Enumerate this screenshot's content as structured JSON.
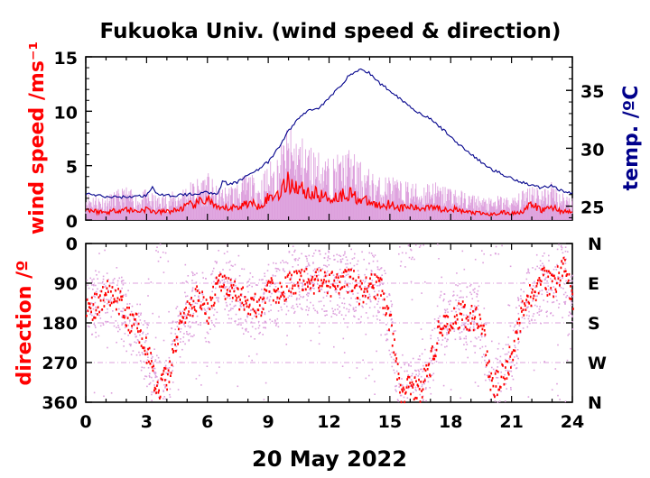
{
  "chart_data": [
    {
      "type": "line",
      "title": "Fukuoka Univ. (wind speed & direction)",
      "ylabel": "wind speed /ms⁻¹",
      "y2label": "temp. /ºC",
      "xlim": [
        0,
        24
      ],
      "ylim": [
        0,
        15
      ],
      "y2lim": [
        23.8,
        37.9
      ],
      "yticks": [
        "0",
        "5",
        "10",
        "15"
      ],
      "y2ticks": [
        "25",
        "30",
        "35"
      ],
      "y2tick_values": [
        25,
        30,
        35
      ],
      "grid": false,
      "colors": {
        "wind_mean": "#ff0000",
        "wind_gust": "#dda0dd",
        "temperature": "#00008b"
      },
      "series": [
        {
          "role": "wind_mean",
          "x": [
            0,
            0.5,
            1,
            1.5,
            2,
            2.5,
            3,
            3.5,
            4,
            4.5,
            5,
            5.5,
            6,
            6.5,
            7,
            7.5,
            8,
            8.5,
            9,
            9.5,
            10,
            10.5,
            11,
            11.5,
            12,
            12.5,
            13,
            13.5,
            14,
            14.5,
            15,
            15.5,
            16,
            16.5,
            17,
            17.5,
            18,
            18.5,
            19,
            19.5,
            20,
            20.5,
            21,
            21.5,
            22,
            22.5,
            23,
            23.5,
            24
          ],
          "values": [
            1.0,
            0.8,
            0.7,
            0.9,
            1.0,
            0.8,
            1.0,
            0.7,
            0.8,
            0.9,
            1.3,
            1.5,
            2.0,
            1.0,
            1.1,
            1.2,
            1.6,
            1.3,
            2.0,
            2.5,
            3.5,
            3.0,
            2.5,
            2.3,
            2.0,
            2.2,
            2.5,
            1.9,
            1.6,
            1.3,
            1.5,
            1.1,
            1.2,
            1.0,
            1.4,
            1.0,
            1.1,
            0.8,
            0.7,
            0.6,
            0.5,
            0.7,
            0.6,
            0.8,
            1.4,
            0.9,
            1.2,
            0.8,
            0.7
          ]
        },
        {
          "role": "wind_gust",
          "x": [
            0,
            0.5,
            1,
            1.5,
            2,
            2.5,
            3,
            3.5,
            4,
            4.5,
            5,
            5.5,
            6,
            6.5,
            7,
            7.5,
            8,
            8.5,
            9,
            9.5,
            10,
            10.5,
            11,
            11.5,
            12,
            12.5,
            13,
            13.5,
            14,
            14.5,
            15,
            15.5,
            16,
            16.5,
            17,
            17.5,
            18,
            18.5,
            19,
            19.5,
            20,
            20.5,
            21,
            21.5,
            22,
            22.5,
            23,
            23.5,
            24
          ],
          "values": [
            2.2,
            2.0,
            1.8,
            2.2,
            2.5,
            2.0,
            2.3,
            1.8,
            2.0,
            2.2,
            2.8,
            3.2,
            3.6,
            2.4,
            2.6,
            2.9,
            3.6,
            3.0,
            4.2,
            5.2,
            7.0,
            6.5,
            5.8,
            5.2,
            4.6,
            4.9,
            5.4,
            4.4,
            3.8,
            3.2,
            3.5,
            2.9,
            3.0,
            2.6,
            3.2,
            2.6,
            2.7,
            2.2,
            2.0,
            1.8,
            1.6,
            1.9,
            1.7,
            2.1,
            3.2,
            2.4,
            2.9,
            2.2,
            2.0
          ]
        },
        {
          "role": "temperature",
          "axis": "right",
          "x": [
            0,
            1,
            2,
            3,
            3.3,
            3.5,
            4,
            5,
            6,
            6.5,
            6.8,
            7,
            7.5,
            8,
            8.5,
            9,
            9.5,
            10,
            10.5,
            11,
            11.5,
            12,
            12.5,
            13,
            13.5,
            14,
            14.5,
            15,
            15.5,
            16,
            16.5,
            17,
            17.5,
            18,
            18.5,
            19,
            19.5,
            20,
            20.5,
            21,
            21.5,
            22,
            22.5,
            23,
            23.5,
            24
          ],
          "values": [
            26.1,
            25.8,
            25.8,
            25.9,
            26.8,
            26.0,
            25.9,
            26.0,
            26.2,
            26.1,
            27.3,
            26.8,
            27.1,
            27.7,
            28.2,
            28.8,
            30.0,
            31.5,
            32.6,
            33.3,
            33.5,
            34.3,
            35.3,
            36.3,
            36.8,
            36.5,
            35.6,
            35.0,
            34.3,
            33.6,
            33.0,
            32.5,
            31.8,
            31.0,
            30.2,
            29.5,
            28.8,
            28.2,
            27.8,
            27.4,
            27.1,
            26.8,
            26.6,
            26.8,
            26.3,
            26.1
          ]
        }
      ]
    },
    {
      "type": "scatter",
      "ylabel": "direction /º",
      "xlabel": "20 May 2022",
      "xlim": [
        0,
        24
      ],
      "ylim": [
        360,
        0
      ],
      "xticks": [
        "0",
        "3",
        "6",
        "9",
        "12",
        "15",
        "18",
        "21",
        "24"
      ],
      "yticks": [
        "0",
        "90",
        "180",
        "270",
        "360"
      ],
      "y2ticks": [
        "N",
        "E",
        "S",
        "W",
        "N"
      ],
      "gridlines_y": [
        90,
        180,
        270
      ],
      "colors": {
        "mean": "#ff0000",
        "scatter": "#dda0dd",
        "grid": "#dda0dd"
      },
      "series": [
        {
          "role": "mean_direction",
          "x": [
            0,
            0.5,
            1,
            1.5,
            2,
            2.5,
            3,
            3.5,
            4,
            4.5,
            5,
            5.5,
            6,
            6.5,
            7,
            7.5,
            8,
            8.5,
            9,
            9.5,
            10,
            10.5,
            11,
            11.5,
            12,
            12.5,
            13,
            13.5,
            14,
            14.5,
            15,
            15.5,
            16,
            16.5,
            17,
            17.5,
            18,
            18.5,
            19,
            19.5,
            20,
            20.5,
            21,
            21.5,
            22,
            22.5,
            23,
            23.5,
            24
          ],
          "values": [
            150,
            140,
            110,
            120,
            170,
            190,
            250,
            330,
            300,
            200,
            150,
            120,
            160,
            90,
            100,
            120,
            130,
            150,
            100,
            120,
            90,
            80,
            90,
            85,
            90,
            95,
            80,
            110,
            90,
            100,
            180,
            350,
            320,
            330,
            270,
            180,
            170,
            160,
            170,
            180,
            330,
            300,
            250,
            150,
            110,
            80,
            100,
            50,
            130
          ]
        }
      ]
    }
  ]
}
